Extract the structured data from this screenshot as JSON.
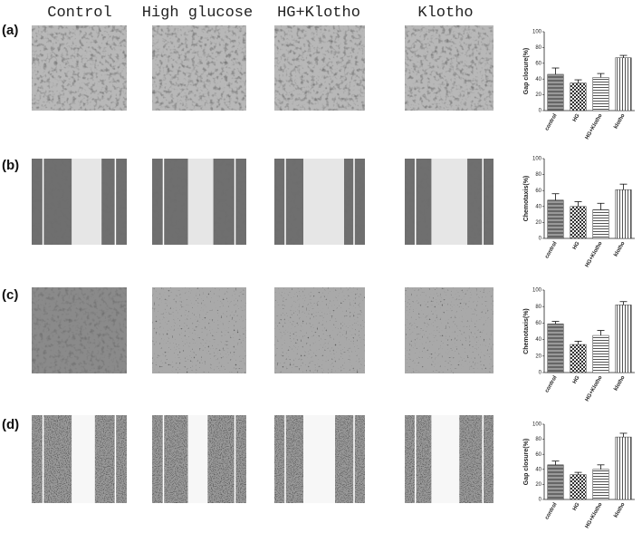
{
  "column_labels": [
    "Control",
    "High glucose",
    "HG+Klotho",
    "Klotho"
  ],
  "chart_data": [
    {
      "type": "bar",
      "label": "(a)",
      "ylabel": "Gap closure(%)",
      "categories": [
        "control",
        "HG",
        "HG+Klotho",
        "klotho"
      ],
      "values": [
        46,
        35,
        42,
        67
      ],
      "errors": [
        8,
        4,
        5,
        3
      ],
      "color": "#777777",
      "ylim": [
        0,
        100
      ],
      "yticks": [
        0,
        20,
        40,
        60,
        80,
        100
      ]
    },
    {
      "type": "bar",
      "label": "(b)",
      "ylabel": "Chemotaxis(%)",
      "categories": [
        "control",
        "HG",
        "HG+Klotho",
        "klotho"
      ],
      "values": [
        48,
        40,
        36,
        61
      ],
      "errors": [
        8,
        6,
        8,
        7
      ],
      "color": "#777777",
      "ylim": [
        0,
        100
      ],
      "yticks": [
        0,
        20,
        40,
        60,
        80,
        100
      ]
    },
    {
      "type": "bar",
      "label": "(c)",
      "ylabel": "Chemotaxis(%)",
      "categories": [
        "control",
        "HG",
        "HG+Klotho",
        "klotho"
      ],
      "values": [
        59,
        34,
        45,
        82
      ],
      "errors": [
        3,
        4,
        6,
        4
      ],
      "color": "#777777",
      "ylim": [
        0,
        100
      ],
      "yticks": [
        0,
        20,
        40,
        60,
        80,
        100
      ]
    },
    {
      "type": "bar",
      "label": "(d)",
      "ylabel": "Gap closure(%)",
      "categories": [
        "control",
        "HG",
        "HG+Klotho",
        "klotho"
      ],
      "values": [
        46,
        33,
        40,
        83
      ],
      "errors": [
        5,
        3,
        6,
        5
      ],
      "color": "#777777",
      "ylim": [
        0,
        100
      ],
      "yticks": [
        0,
        20,
        40,
        60,
        80,
        100
      ]
    }
  ]
}
